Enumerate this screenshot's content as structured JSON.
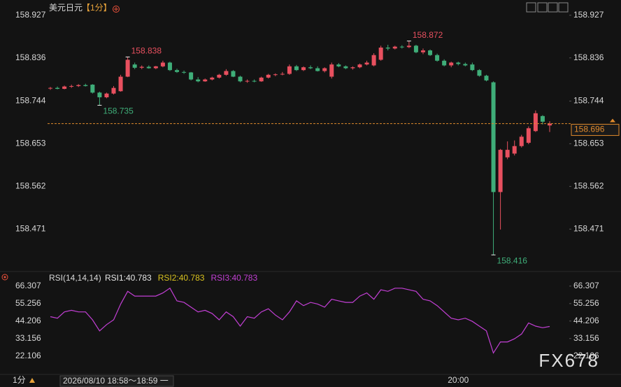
{
  "chart_data": [
    {
      "type": "candlestick",
      "title": "美元日元",
      "period": "【1分】",
      "categories": [
        null,
        null,
        null,
        null,
        null,
        null,
        null,
        null,
        null,
        null,
        null,
        null,
        null,
        null,
        null,
        null,
        null,
        null,
        null,
        null,
        null,
        null,
        null,
        null,
        null,
        null,
        null,
        null,
        null,
        null,
        null,
        null,
        null,
        null,
        null,
        null,
        null,
        null,
        null,
        null,
        null,
        null,
        null,
        null,
        null,
        null,
        null,
        null,
        null,
        null,
        null,
        null,
        null,
        null,
        null,
        null,
        null,
        null,
        "20:00",
        null,
        null,
        null,
        null,
        null,
        null,
        null,
        null,
        null,
        null,
        null,
        null,
        null
      ],
      "open": [
        158.771,
        158.772,
        158.77,
        158.775,
        158.776,
        158.778,
        158.779,
        158.762,
        158.752,
        158.76,
        158.765,
        158.796,
        158.822,
        158.815,
        158.817,
        158.814,
        158.818,
        158.826,
        158.81,
        158.806,
        158.805,
        158.79,
        158.786,
        158.79,
        158.794,
        158.8,
        158.808,
        158.796,
        158.786,
        158.787,
        158.786,
        158.794,
        158.8,
        158.801,
        158.802,
        158.818,
        158.81,
        158.816,
        158.814,
        158.808,
        158.796,
        158.822,
        158.818,
        158.814,
        158.816,
        158.822,
        158.82,
        158.832,
        158.858,
        158.856,
        158.86,
        158.859,
        158.862,
        158.848,
        158.852,
        158.842,
        158.83,
        158.82,
        158.826,
        158.823,
        158.822,
        158.81,
        158.798,
        158.784,
        158.55,
        158.624,
        158.632,
        158.648,
        158.655,
        158.68,
        158.712,
        158.692
      ],
      "high": [
        158.774,
        158.775,
        158.777,
        158.779,
        158.78,
        158.781,
        158.78,
        158.764,
        158.762,
        158.776,
        158.8,
        158.838,
        158.826,
        158.82,
        158.82,
        158.819,
        158.83,
        158.828,
        158.813,
        158.809,
        158.806,
        158.795,
        158.792,
        158.796,
        158.802,
        158.812,
        158.81,
        158.798,
        158.79,
        158.79,
        158.796,
        158.802,
        158.803,
        158.806,
        158.822,
        158.821,
        158.818,
        158.82,
        158.818,
        158.816,
        158.826,
        158.825,
        158.82,
        158.818,
        158.824,
        158.83,
        158.846,
        158.862,
        158.864,
        158.862,
        158.863,
        158.872,
        158.864,
        158.856,
        158.854,
        158.845,
        158.833,
        158.828,
        158.828,
        158.826,
        158.826,
        158.812,
        158.8,
        158.786,
        158.642,
        158.658,
        158.66,
        158.672,
        158.69,
        158.724,
        158.714,
        158.701
      ],
      "low": [
        158.768,
        158.769,
        158.769,
        158.772,
        158.774,
        158.775,
        158.76,
        158.735,
        158.75,
        158.758,
        158.764,
        158.795,
        158.812,
        158.812,
        158.813,
        158.812,
        158.816,
        158.808,
        158.804,
        158.802,
        158.788,
        158.784,
        158.785,
        158.788,
        158.792,
        158.798,
        158.795,
        158.784,
        158.783,
        158.784,
        158.785,
        158.792,
        158.797,
        158.799,
        158.8,
        158.808,
        158.808,
        158.812,
        158.807,
        158.805,
        158.792,
        158.816,
        158.812,
        158.811,
        158.814,
        158.82,
        158.818,
        158.83,
        158.852,
        158.854,
        158.856,
        158.857,
        158.846,
        158.844,
        158.84,
        158.828,
        158.818,
        158.816,
        158.82,
        158.818,
        158.808,
        158.796,
        158.786,
        158.416,
        158.47,
        158.62,
        158.628,
        158.645,
        158.652,
        158.678,
        158.694,
        158.678
      ],
      "close": [
        158.772,
        158.77,
        158.775,
        158.776,
        158.778,
        158.776,
        158.762,
        158.752,
        158.76,
        158.772,
        158.796,
        158.832,
        158.815,
        158.817,
        158.814,
        158.818,
        158.826,
        158.81,
        158.806,
        158.805,
        158.79,
        158.786,
        158.79,
        158.794,
        158.8,
        158.808,
        158.796,
        158.786,
        158.787,
        158.786,
        158.794,
        158.8,
        158.801,
        158.802,
        158.818,
        158.81,
        158.816,
        158.814,
        158.808,
        158.814,
        158.822,
        158.818,
        158.814,
        158.816,
        158.822,
        158.826,
        158.842,
        158.858,
        158.856,
        158.86,
        158.859,
        158.862,
        158.848,
        158.852,
        158.842,
        158.83,
        158.82,
        158.826,
        158.823,
        158.82,
        158.81,
        158.798,
        158.788,
        158.55,
        158.64,
        158.64,
        158.648,
        158.668,
        158.686,
        158.718,
        158.7,
        158.696
      ],
      "up_color": "#e8505f",
      "down_color": "#3fae79",
      "last_color": "#e08a2c",
      "high_labels": [
        11,
        51
      ],
      "low_labels": [
        7,
        63
      ],
      "ylim": [
        158.385,
        158.952
      ],
      "yticks": [
        158.927,
        158.836,
        158.744,
        158.653,
        158.562,
        158.471
      ],
      "cursor_label": "2026/08/10 18:58～18:59 一",
      "period_button": "1分",
      "watermark": "FX678"
    },
    {
      "type": "line",
      "title": "RSI(14,14,14)",
      "legend": [
        {
          "text": "RSI1:40.783",
          "color": "#e6e6e6"
        },
        {
          "text": "RSI2:40.783",
          "color": "#d9c21f"
        },
        {
          "text": "RSI3:40.783",
          "color": "#c23fd4"
        }
      ],
      "color": "#c23fd4",
      "values": [
        47,
        46,
        50,
        51,
        50,
        50,
        45,
        38,
        42,
        45,
        55,
        63,
        60,
        60,
        60,
        60,
        62,
        65,
        57,
        56,
        53,
        50,
        51,
        49,
        45,
        50,
        47,
        41,
        47,
        46,
        50,
        52,
        48,
        45,
        50,
        57,
        54,
        56,
        55,
        53,
        58,
        57,
        56,
        56,
        60,
        62,
        58,
        64,
        63,
        65,
        65,
        64,
        63,
        58,
        57,
        54,
        50,
        46,
        45,
        46,
        44,
        41,
        38,
        24,
        31,
        31,
        33,
        36,
        43,
        41,
        40,
        40.783
      ],
      "ylim": [
        14,
        72
      ],
      "yticks": [
        66.307,
        55.256,
        44.206,
        33.156,
        22.106
      ]
    }
  ]
}
